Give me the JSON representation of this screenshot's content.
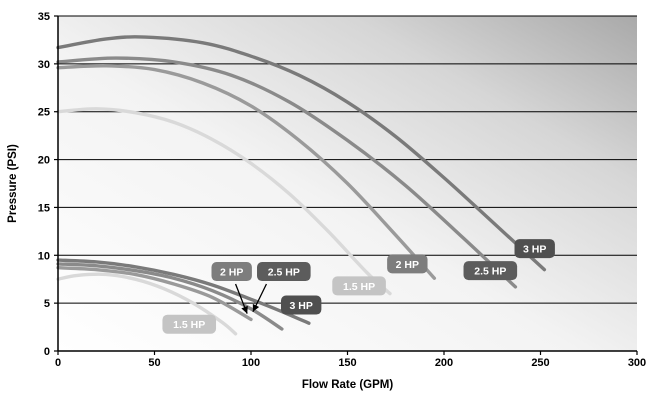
{
  "chart_data": {
    "type": "line",
    "xlabel": "Flow Rate (GPM)",
    "ylabel": "Pressure (PSI)",
    "xlim": [
      0,
      300
    ],
    "ylim": [
      0,
      35
    ],
    "x_ticks": [
      "0",
      "50",
      "100",
      "150",
      "200",
      "250",
      "300"
    ],
    "y_ticks": [
      "0",
      "5",
      "10",
      "15",
      "20",
      "25",
      "30",
      "35"
    ],
    "grid": "horizontal",
    "series": [
      {
        "label": "3 HP",
        "group": "high",
        "color": "#7a7a7a",
        "x": [
          0,
          25,
          45,
          75,
          100,
          125,
          150,
          175,
          200,
          225,
          252
        ],
        "y": [
          31.7,
          32.6,
          32.8,
          32.2,
          30.8,
          28.8,
          26.0,
          22.4,
          18.1,
          13.5,
          8.5
        ]
      },
      {
        "label": "2.5 HP",
        "group": "high",
        "color": "#8a8a8a",
        "x": [
          0,
          30,
          60,
          90,
          120,
          150,
          180,
          210,
          237
        ],
        "y": [
          30.2,
          30.6,
          30.2,
          28.8,
          26.0,
          22.0,
          17.3,
          11.8,
          6.7
        ]
      },
      {
        "label": "2 HP",
        "group": "high",
        "color": "#9a9a9a",
        "x": [
          0,
          25,
          50,
          75,
          100,
          125,
          150,
          175,
          195
        ],
        "y": [
          29.6,
          29.8,
          29.4,
          28.0,
          25.6,
          22.0,
          17.5,
          12.1,
          7.6
        ]
      },
      {
        "label": "1.5 HP",
        "group": "high",
        "color": "#d9d9d9",
        "x": [
          0,
          20,
          40,
          60,
          80,
          100,
          120,
          140,
          160,
          172
        ],
        "y": [
          25.0,
          25.3,
          24.9,
          23.9,
          22.1,
          19.6,
          16.4,
          12.5,
          8.2,
          6.0
        ]
      },
      {
        "label": "3 HP",
        "group": "low",
        "color": "#7a7a7a",
        "x": [
          0,
          20,
          40,
          60,
          80,
          100,
          115,
          130
        ],
        "y": [
          9.5,
          9.3,
          8.8,
          8.0,
          6.9,
          5.4,
          4.2,
          2.9
        ]
      },
      {
        "label": "2.5 HP",
        "group": "low",
        "color": "#8a8a8a",
        "x": [
          0,
          20,
          40,
          60,
          80,
          100,
          116
        ],
        "y": [
          9.1,
          8.9,
          8.4,
          7.6,
          6.3,
          4.4,
          2.3
        ]
      },
      {
        "label": "2 HP",
        "group": "low",
        "color": "#9a9a9a",
        "x": [
          0,
          20,
          40,
          60,
          80,
          100
        ],
        "y": [
          8.7,
          8.5,
          8.0,
          7.0,
          5.6,
          3.3
        ]
      },
      {
        "label": "1.5 HP",
        "group": "low",
        "color": "#d9d9d9",
        "x": [
          0,
          10,
          25,
          40,
          55,
          70,
          85,
          92
        ],
        "y": [
          7.5,
          7.9,
          8.0,
          7.5,
          6.5,
          5.0,
          3.0,
          1.8
        ]
      }
    ],
    "annotations": [
      {
        "text": "3 HP",
        "x": 247,
        "y": 10.7,
        "bg": "#4f4f4f"
      },
      {
        "text": "2.5 HP",
        "x": 224,
        "y": 8.4,
        "bg": "#5c5c5c"
      },
      {
        "text": "2 HP",
        "x": 181,
        "y": 9.1,
        "bg": "#7d7d7d"
      },
      {
        "text": "1.5 HP",
        "x": 156,
        "y": 6.8,
        "bg": "#c4c4c4"
      },
      {
        "text": "2 HP",
        "x": 90,
        "y": 8.3,
        "bg": "#7d7d7d"
      },
      {
        "text": "2.5 HP",
        "x": 117,
        "y": 8.3,
        "bg": "#5c5c5c"
      },
      {
        "text": "3 HP",
        "x": 126,
        "y": 4.8,
        "bg": "#4f4f4f"
      },
      {
        "text": "1.5 HP",
        "x": 68,
        "y": 2.8,
        "bg": "#c4c4c4"
      }
    ],
    "arrows": [
      {
        "from": [
          92,
          7.0
        ],
        "to": [
          98,
          3.9
        ]
      },
      {
        "from": [
          108,
          7.0
        ],
        "to": [
          101,
          4.1
        ]
      }
    ]
  }
}
